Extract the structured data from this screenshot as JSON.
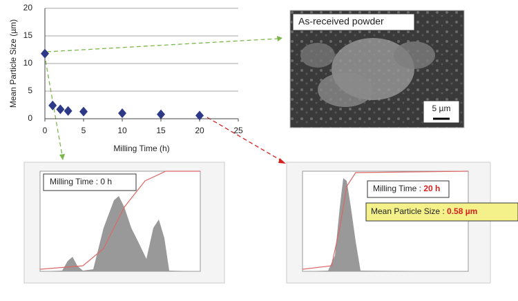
{
  "chart_data": {
    "type": "scatter",
    "xlabel": "Milling Time (h)",
    "ylabel": "Mean Particle Size (µm)",
    "x": [
      0,
      1,
      2,
      3,
      5,
      10,
      15,
      20
    ],
    "values": [
      11.8,
      2.4,
      1.7,
      1.4,
      1.3,
      1.0,
      0.8,
      0.58
    ],
    "color": "#2e3a87",
    "xlim": [
      0,
      25
    ],
    "xticks": [
      0,
      5,
      10,
      15,
      20,
      25
    ],
    "ylim": [
      0,
      20
    ],
    "yticks": [
      0,
      5,
      10,
      15,
      20
    ],
    "grid": true
  },
  "panels": {
    "sem": {
      "label": "As-received powder",
      "scale": "5 µm"
    },
    "left": {
      "label": "Milling Time : 0 h"
    },
    "right": {
      "label": "Milling Time : ",
      "time": "20 h",
      "size_label": "Mean Particle Size : ",
      "size": "0.58 µm"
    }
  }
}
